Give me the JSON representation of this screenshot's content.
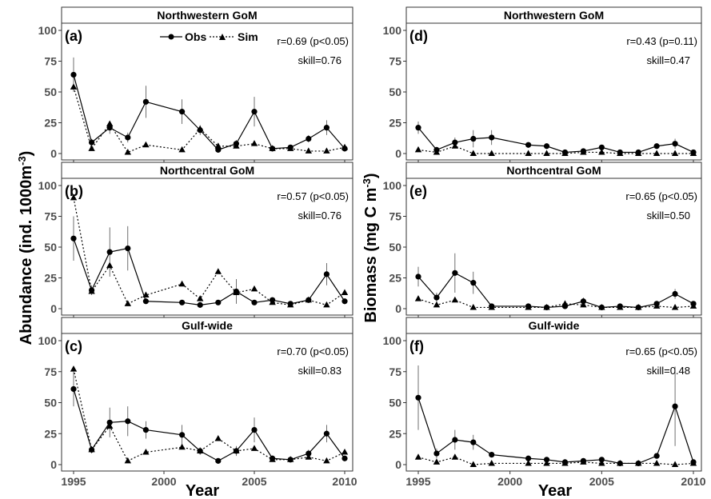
{
  "figure": {
    "xlabel": "Year",
    "ylabel_left": "Abundance (ind. 1000m",
    "ylabel_left_sup": "-3",
    "ylabel_left_end": ")",
    "ylabel_right_a": "Biomass (mg C m",
    "ylabel_right_sup": "-3",
    "ylabel_right_end": ")",
    "legend": {
      "obs_label": "Obs",
      "sim_label": "Sim"
    }
  },
  "chart_data": [
    {
      "type": "line",
      "panel": "(a)",
      "strip": "Northwestern GoM",
      "stat_r": "r=0.69 (p<0.05)",
      "stat_skill": "skill=0.76",
      "xlim": [
        1995,
        2010
      ],
      "ylim": [
        0,
        100
      ],
      "x_ticks": [
        1995,
        2000,
        2005,
        2010
      ],
      "y_ticks": [
        0,
        25,
        50,
        75,
        100
      ],
      "series": [
        {
          "name": "Obs",
          "line": "solid",
          "marker": "circle",
          "x": [
            1995,
            1996,
            1997,
            1998,
            1999,
            2001,
            2002,
            2003,
            2004,
            2005,
            2006,
            2007,
            2008,
            2009,
            2010
          ],
          "y": [
            64,
            9,
            21,
            13,
            42,
            34,
            19,
            3,
            8,
            34,
            4,
            5,
            12,
            21,
            4
          ],
          "err": [
            14,
            3,
            5,
            4,
            13,
            10,
            4,
            2,
            3,
            12,
            2,
            2,
            3,
            6,
            2
          ]
        },
        {
          "name": "Sim",
          "line": "dotted",
          "marker": "triangle",
          "x": [
            1995,
            1996,
            1997,
            1998,
            1999,
            2001,
            2002,
            2003,
            2004,
            2005,
            2006,
            2007,
            2008,
            2009,
            2010
          ],
          "y": [
            54,
            4,
            24,
            1,
            7,
            3,
            20,
            6,
            6,
            8,
            4,
            4,
            2,
            2,
            5
          ]
        }
      ]
    },
    {
      "type": "line",
      "panel": "(b)",
      "strip": "Northcentral GoM",
      "stat_r": "r=0.57 (p<0.05)",
      "stat_skill": "skill=0.76",
      "xlim": [
        1995,
        2010
      ],
      "ylim": [
        0,
        100
      ],
      "x_ticks": [
        1995,
        2000,
        2005,
        2010
      ],
      "y_ticks": [
        0,
        25,
        50,
        75,
        100
      ],
      "series": [
        {
          "name": "Obs",
          "line": "solid",
          "marker": "circle",
          "x": [
            1995,
            1996,
            1997,
            1998,
            1999,
            2001,
            2002,
            2003,
            2004,
            2005,
            2006,
            2007,
            2008,
            2009,
            2010
          ],
          "y": [
            57,
            15,
            46,
            49,
            6,
            5,
            3,
            5,
            14,
            5,
            7,
            4,
            7,
            28,
            6
          ],
          "err": [
            18,
            4,
            20,
            18,
            2,
            2,
            1,
            2,
            10,
            2,
            2,
            1,
            2,
            9,
            2
          ]
        },
        {
          "name": "Sim",
          "line": "dotted",
          "marker": "triangle",
          "x": [
            1995,
            1996,
            1997,
            1998,
            1999,
            2001,
            2002,
            2003,
            2004,
            2005,
            2006,
            2007,
            2008,
            2009,
            2010
          ],
          "y": [
            90,
            14,
            35,
            4,
            11,
            20,
            8,
            30,
            13,
            16,
            5,
            3,
            7,
            3,
            13
          ]
        }
      ]
    },
    {
      "type": "line",
      "panel": "(c)",
      "strip": "Gulf-wide",
      "stat_r": "r=0.70 (p<0.05)",
      "stat_skill": "skill=0.83",
      "xlim": [
        1995,
        2010
      ],
      "ylim": [
        0,
        100
      ],
      "x_ticks": [
        1995,
        2000,
        2005,
        2010
      ],
      "y_ticks": [
        0,
        25,
        50,
        75,
        100
      ],
      "series": [
        {
          "name": "Obs",
          "line": "solid",
          "marker": "circle",
          "x": [
            1995,
            1996,
            1997,
            1998,
            1999,
            2001,
            2002,
            2003,
            2004,
            2005,
            2006,
            2007,
            2008,
            2009,
            2010
          ],
          "y": [
            61,
            12,
            34,
            35,
            28,
            24,
            11,
            3,
            11,
            28,
            5,
            4,
            9,
            25,
            5
          ],
          "err": [
            14,
            3,
            12,
            12,
            7,
            8,
            3,
            1,
            4,
            10,
            2,
            1,
            3,
            7,
            2
          ]
        },
        {
          "name": "Sim",
          "line": "dotted",
          "marker": "triangle",
          "x": [
            1995,
            1996,
            1997,
            1998,
            1999,
            2001,
            2002,
            2003,
            2004,
            2005,
            2006,
            2007,
            2008,
            2009,
            2010
          ],
          "y": [
            77,
            12,
            31,
            3,
            10,
            14,
            11,
            21,
            11,
            13,
            4,
            4,
            6,
            3,
            10
          ]
        }
      ]
    },
    {
      "type": "line",
      "panel": "(d)",
      "strip": "Northwestern GoM",
      "stat_r": "r=0.43 (p=0.11)",
      "stat_skill": "skill=0.47",
      "xlim": [
        1995,
        2010
      ],
      "ylim": [
        0,
        100
      ],
      "x_ticks": [
        1995,
        2000,
        2005,
        2010
      ],
      "y_ticks": [
        0,
        25,
        50,
        75,
        100
      ],
      "series": [
        {
          "name": "Obs",
          "line": "solid",
          "marker": "circle",
          "x": [
            1995,
            1996,
            1997,
            1998,
            1999,
            2001,
            2002,
            2003,
            2004,
            2005,
            2006,
            2007,
            2008,
            2009,
            2010
          ],
          "y": [
            21,
            3,
            9,
            12,
            13,
            7,
            6,
            1,
            2,
            5,
            1,
            1,
            6,
            8,
            1
          ],
          "err": [
            5,
            2,
            4,
            7,
            6,
            2,
            2,
            1,
            1,
            2,
            1,
            1,
            2,
            4,
            1
          ]
        },
        {
          "name": "Sim",
          "line": "dotted",
          "marker": "triangle",
          "x": [
            1995,
            1996,
            1997,
            1998,
            1999,
            2001,
            2002,
            2003,
            2004,
            2005,
            2006,
            2007,
            2008,
            2009,
            2010
          ],
          "y": [
            3,
            1,
            6,
            0,
            0,
            0,
            0,
            0,
            1,
            1,
            0,
            0,
            0,
            0,
            0
          ]
        }
      ]
    },
    {
      "type": "line",
      "panel": "(e)",
      "strip": "Northcentral GoM",
      "stat_r": "r=0.65 (p<0.05)",
      "stat_skill": "skill=0.50",
      "xlim": [
        1995,
        2010
      ],
      "ylim": [
        0,
        100
      ],
      "x_ticks": [
        1995,
        2000,
        2005,
        2010
      ],
      "y_ticks": [
        0,
        25,
        50,
        75,
        100
      ],
      "series": [
        {
          "name": "Obs",
          "line": "solid",
          "marker": "circle",
          "x": [
            1995,
            1996,
            1997,
            1998,
            1999,
            2001,
            2002,
            2003,
            2004,
            2005,
            2006,
            2007,
            2008,
            2009,
            2010
          ],
          "y": [
            26,
            9,
            29,
            21,
            2,
            2,
            1,
            2,
            6,
            1,
            2,
            1,
            4,
            12,
            4
          ],
          "err": [
            8,
            4,
            16,
            9,
            1,
            1,
            1,
            1,
            3,
            1,
            1,
            1,
            1,
            4,
            1
          ]
        },
        {
          "name": "Sim",
          "line": "dotted",
          "marker": "triangle",
          "x": [
            1995,
            1996,
            1997,
            1998,
            1999,
            2001,
            2002,
            2003,
            2004,
            2005,
            2006,
            2007,
            2008,
            2009,
            2010
          ],
          "y": [
            8,
            3,
            7,
            1,
            1,
            1,
            1,
            4,
            3,
            1,
            1,
            1,
            2,
            1,
            2
          ]
        }
      ]
    },
    {
      "type": "line",
      "panel": "(f)",
      "strip": "Gulf-wide",
      "stat_r": "r=0.65 (p<0.05)",
      "stat_skill": "skill=0.48",
      "xlim": [
        1995,
        2010
      ],
      "ylim": [
        0,
        100
      ],
      "x_ticks": [
        1995,
        2000,
        2005,
        2010
      ],
      "y_ticks": [
        0,
        25,
        50,
        75,
        100
      ],
      "series": [
        {
          "name": "Obs",
          "line": "solid",
          "marker": "circle",
          "x": [
            1995,
            1996,
            1997,
            1998,
            1999,
            2001,
            2002,
            2003,
            2004,
            2005,
            2006,
            2007,
            2008,
            2009,
            2010
          ],
          "y": [
            54,
            9,
            20,
            18,
            8,
            5,
            4,
            2,
            3,
            4,
            1,
            1,
            7,
            47,
            2
          ],
          "err": [
            26,
            4,
            8,
            6,
            2,
            2,
            1,
            1,
            1,
            1,
            1,
            1,
            2,
            32,
            1
          ]
        },
        {
          "name": "Sim",
          "line": "dotted",
          "marker": "triangle",
          "x": [
            1995,
            1996,
            1997,
            1998,
            1999,
            2001,
            2002,
            2003,
            2004,
            2005,
            2006,
            2007,
            2008,
            2009,
            2010
          ],
          "y": [
            6,
            2,
            6,
            0,
            1,
            1,
            1,
            1,
            2,
            1,
            1,
            1,
            1,
            0,
            1
          ]
        }
      ]
    }
  ]
}
